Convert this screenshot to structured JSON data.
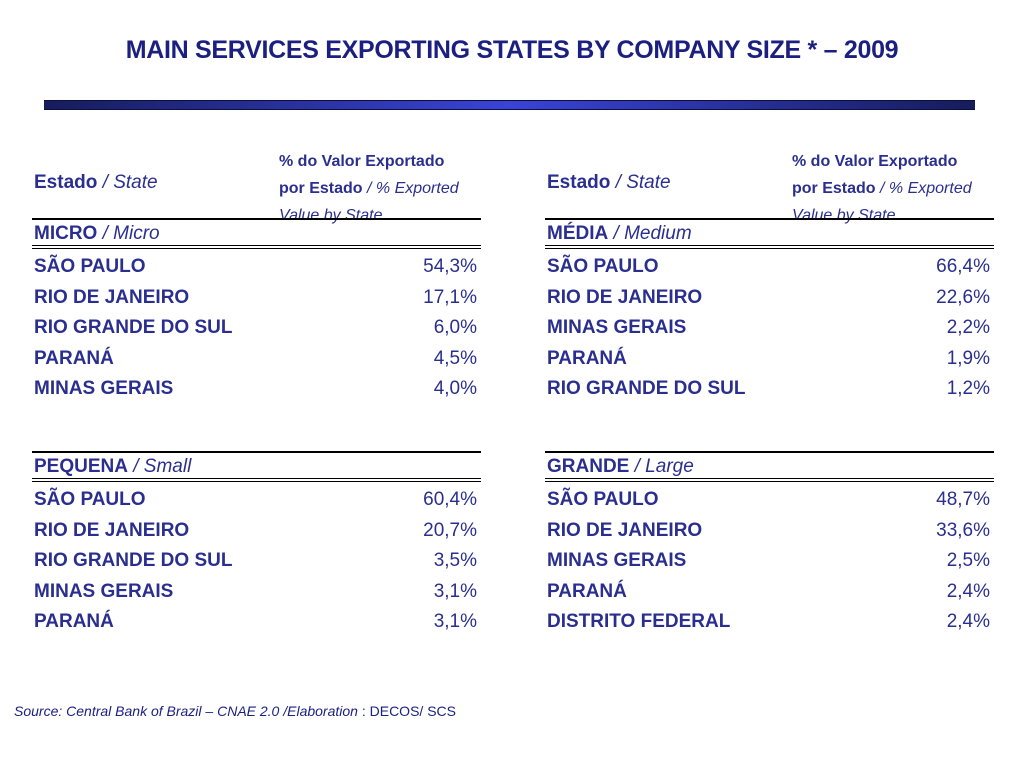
{
  "title": "MAIN SERVICES EXPORTING STATES BY COMPANY SIZE * – 2009",
  "header": {
    "state_bold": "Estado",
    "state_italic": "/ State",
    "pct_line1": "% do Valor Exportado",
    "pct_line2_bold": "por Estado",
    "pct_line2_italic": "/ % Exported",
    "pct_line3_italic": "Value by State"
  },
  "tables": [
    {
      "category_bold": "MICRO",
      "category_italic": "/ Micro",
      "rows": [
        {
          "state": "SÃO PAULO",
          "value": "54,3%"
        },
        {
          "state": "RIO DE JANEIRO",
          "value": "17,1%"
        },
        {
          "state": "RIO GRANDE DO SUL",
          "value": "6,0%"
        },
        {
          "state": "PARANÁ",
          "value": "4,5%"
        },
        {
          "state": "MINAS GERAIS",
          "value": "4,0%"
        }
      ]
    },
    {
      "category_bold": "MÉDIA",
      "category_italic": "/ Medium",
      "rows": [
        {
          "state": "SÃO PAULO",
          "value": "66,4%"
        },
        {
          "state": "RIO DE JANEIRO",
          "value": "22,6%"
        },
        {
          "state": "MINAS GERAIS",
          "value": "2,2%"
        },
        {
          "state": "PARANÁ",
          "value": "1,9%"
        },
        {
          "state": "RIO GRANDE DO SUL",
          "value": "1,2%"
        }
      ]
    },
    {
      "category_bold": "PEQUENA",
      "category_italic": "/ Small",
      "rows": [
        {
          "state": "SÃO PAULO",
          "value": "60,4%"
        },
        {
          "state": "RIO DE JANEIRO",
          "value": "20,7%"
        },
        {
          "state": "RIO GRANDE DO SUL",
          "value": "3,5%"
        },
        {
          "state": "MINAS GERAIS",
          "value": "3,1%"
        },
        {
          "state": "PARANÁ",
          "value": "3,1%"
        }
      ]
    },
    {
      "category_bold": "GRANDE",
      "category_italic": "/ Large",
      "rows": [
        {
          "state": "SÃO PAULO",
          "value": "48,7%"
        },
        {
          "state": "RIO DE JANEIRO",
          "value": "33,6%"
        },
        {
          "state": "MINAS GERAIS",
          "value": "2,5%"
        },
        {
          "state": "PARANÁ",
          "value": "2,4%"
        },
        {
          "state": "DISTRITO FEDERAL",
          "value": "2,4%"
        }
      ]
    }
  ],
  "source": {
    "italic": "Source: Central Bank of Brazil – CNAE 2.0 /Elaboration",
    "plain": ": DECOS/ SCS"
  }
}
